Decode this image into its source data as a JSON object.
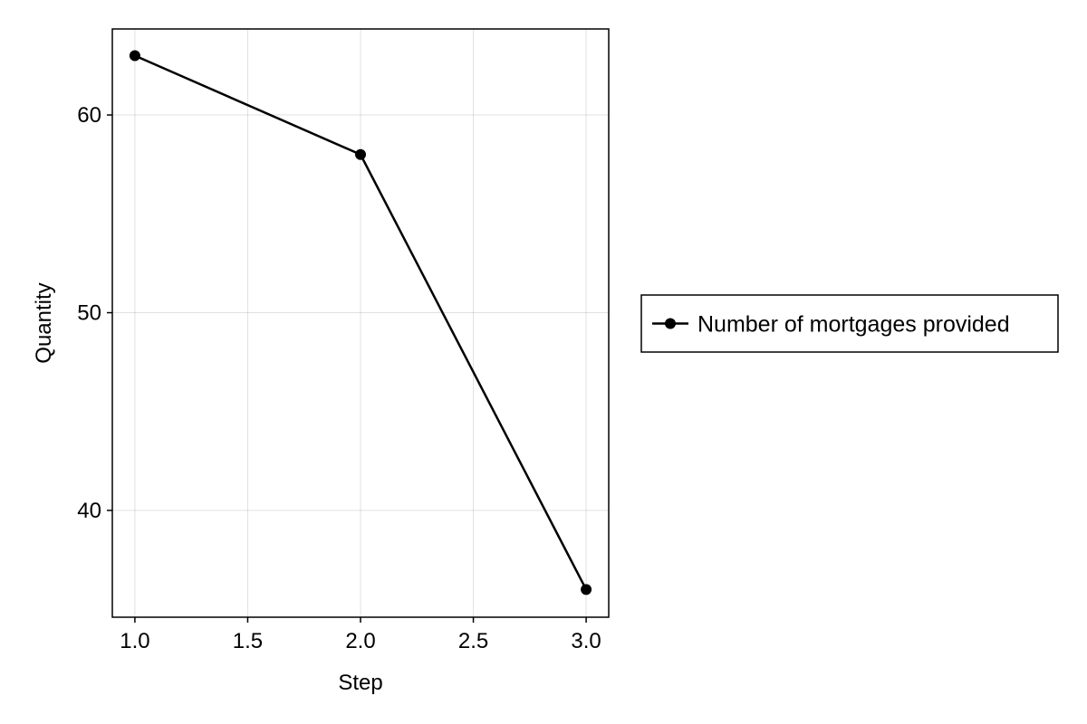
{
  "chart_data": {
    "type": "line",
    "xlabel": "Step",
    "ylabel": "Quantity",
    "xlim": [
      0.9,
      3.1
    ],
    "ylim": [
      34.6,
      64.35
    ],
    "x_ticks": [
      1.0,
      1.5,
      2.0,
      2.5,
      3.0
    ],
    "x_tick_labels": [
      "1.0",
      "1.5",
      "2.0",
      "2.5",
      "3.0"
    ],
    "y_ticks": [
      40,
      50,
      60
    ],
    "y_tick_labels": [
      "40",
      "50",
      "60"
    ],
    "grid": true,
    "legend_position": "right",
    "series": [
      {
        "name": "Number of mortgages provided",
        "color": "#000000",
        "marker": "circle",
        "x": [
          1,
          2,
          3
        ],
        "y": [
          63,
          58,
          36
        ]
      }
    ]
  }
}
